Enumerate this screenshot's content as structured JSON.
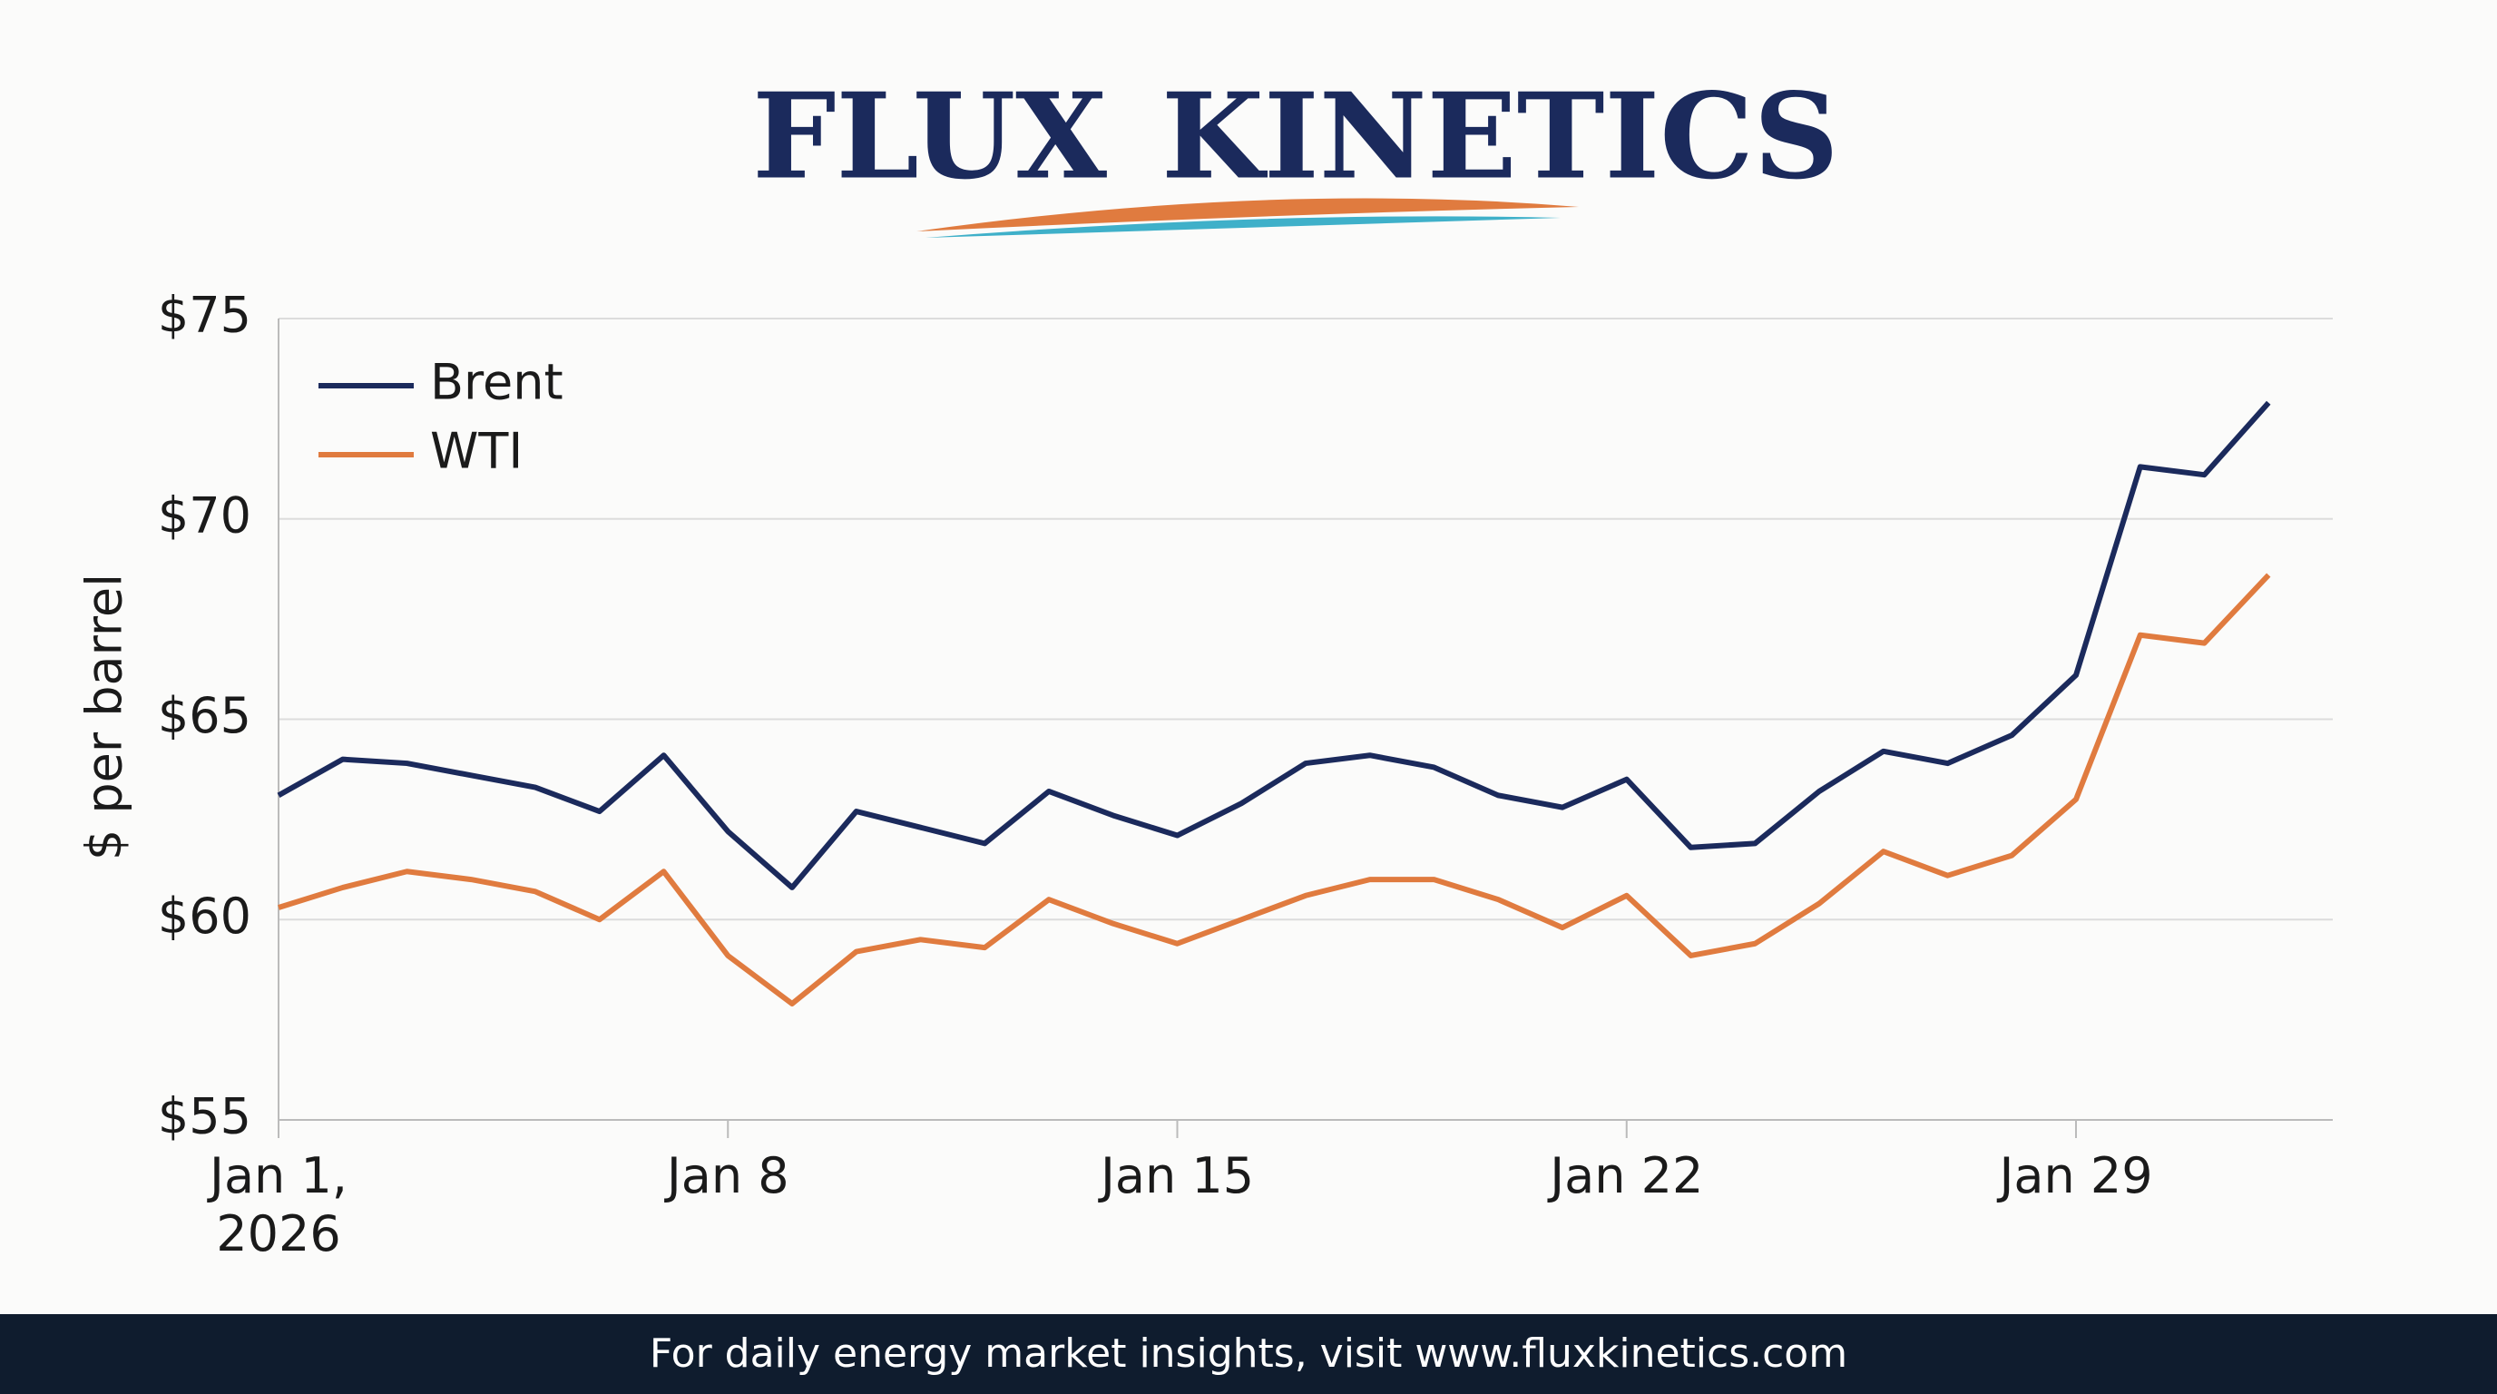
{
  "header": {
    "logo_left": "FLUX",
    "logo_right": "KINETICS"
  },
  "chart_data": {
    "type": "line",
    "ylabel": "$ per barrel",
    "x": [
      "2026-01-01",
      "2026-01-02",
      "2026-01-03",
      "2026-01-04",
      "2026-01-05",
      "2026-01-06",
      "2026-01-07",
      "2026-01-08",
      "2026-01-09",
      "2026-01-10",
      "2026-01-11",
      "2026-01-12",
      "2026-01-13",
      "2026-01-14",
      "2026-01-15",
      "2026-01-16",
      "2026-01-17",
      "2026-01-18",
      "2026-01-19",
      "2026-01-20",
      "2026-01-21",
      "2026-01-22",
      "2026-01-23",
      "2026-01-24",
      "2026-01-25",
      "2026-01-26",
      "2026-01-27",
      "2026-01-28",
      "2026-01-29",
      "2026-01-30",
      "2026-01-31",
      "2026-02-01"
    ],
    "series": [
      {
        "name": "Brent",
        "color": "#1b2a5c",
        "values": [
          63.1,
          64.0,
          63.9,
          63.6,
          63.3,
          62.7,
          64.1,
          62.2,
          60.8,
          62.7,
          62.3,
          61.9,
          63.2,
          62.6,
          62.1,
          62.9,
          63.9,
          64.1,
          63.8,
          63.1,
          62.8,
          63.5,
          61.8,
          61.9,
          63.2,
          64.2,
          63.9,
          64.6,
          66.1,
          71.3,
          71.1,
          72.9
        ]
      },
      {
        "name": "WTI",
        "color": "#e07b3f",
        "values": [
          60.3,
          60.8,
          61.2,
          61.0,
          60.7,
          60.0,
          61.2,
          59.1,
          57.9,
          59.2,
          59.5,
          59.3,
          60.5,
          59.9,
          59.4,
          60.0,
          60.6,
          61.0,
          61.0,
          60.5,
          59.8,
          60.6,
          59.1,
          59.4,
          60.4,
          61.7,
          61.1,
          61.6,
          63.0,
          67.1,
          66.9,
          68.6
        ]
      }
    ],
    "xlim": [
      "2026-01-01",
      "2026-02-02"
    ],
    "xticks": [
      {
        "value": "2026-01-01",
        "label": "Jan 1, 2026"
      },
      {
        "value": "2026-01-08",
        "label": "Jan 8"
      },
      {
        "value": "2026-01-15",
        "label": "Jan 15"
      },
      {
        "value": "2026-01-22",
        "label": "Jan 22"
      },
      {
        "value": "2026-01-29",
        "label": "Jan 29"
      }
    ],
    "ylim": [
      55,
      75
    ],
    "yticks": [
      {
        "value": 55,
        "label": "$55"
      },
      {
        "value": 60,
        "label": "$60"
      },
      {
        "value": 65,
        "label": "$65"
      },
      {
        "value": 70,
        "label": "$70"
      },
      {
        "value": 75,
        "label": "$75"
      }
    ],
    "grid": true,
    "legend": "upper left"
  },
  "footer": {
    "text": "For daily energy market insights, visit www.fluxkinetics.com"
  }
}
